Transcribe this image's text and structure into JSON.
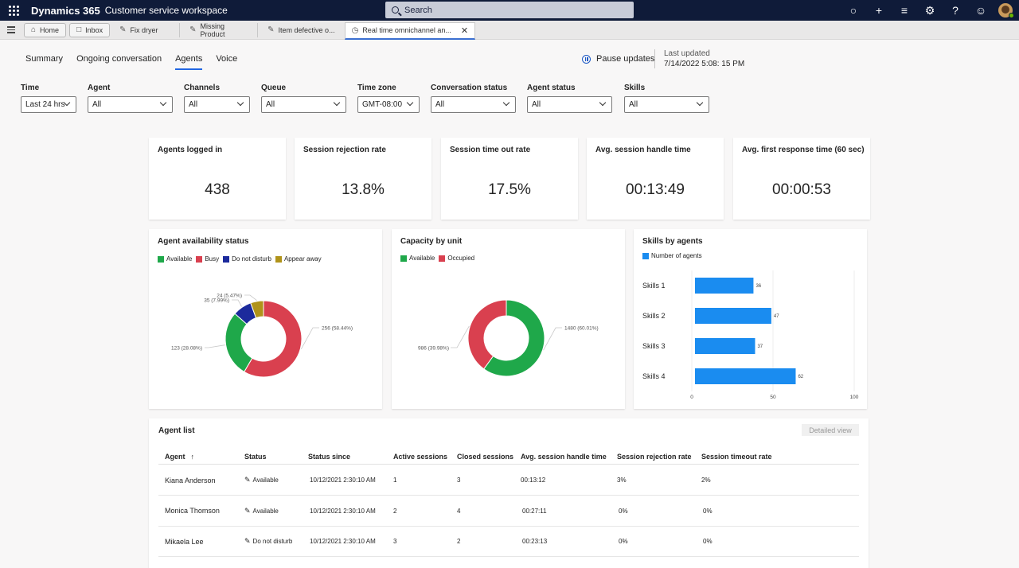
{
  "app": {
    "brand": "Dynamics 365",
    "workspace": "Customer service workspace",
    "search_placeholder": "Search",
    "top_icons": [
      "lightbulb-icon",
      "plus-icon",
      "filter-icon",
      "gear-icon",
      "help-icon",
      "smiley-icon"
    ]
  },
  "session_tabs": [
    {
      "label": "Home",
      "icon": "home-icon"
    },
    {
      "label": "Inbox",
      "icon": "inbox-icon"
    },
    {
      "label": "Fix dryer",
      "icon": "pencil-icon"
    },
    {
      "label": "Missing Product",
      "icon": "pencil-icon"
    },
    {
      "label": "Item defective o...",
      "icon": "pencil-icon"
    },
    {
      "label": "Real time omnichannel an...",
      "icon": "dashboard-icon"
    }
  ],
  "page_tabs": [
    "Summary",
    "Ongoing conversation",
    "Agents",
    "Voice"
  ],
  "active_page_tab": "Agents",
  "pause_label": "Pause updates",
  "last_updated": {
    "label": "Last updated",
    "value": "7/14/2022 5:08: 15 PM"
  },
  "filters": [
    {
      "label": "Time",
      "value": "Last 24 hrs"
    },
    {
      "label": "Agent",
      "value": "All"
    },
    {
      "label": "Channels",
      "value": "All"
    },
    {
      "label": "Queue",
      "value": "All"
    },
    {
      "label": "Time zone",
      "value": "GMT-08:00"
    },
    {
      "label": "Conversation status",
      "value": "All"
    },
    {
      "label": "Agent status",
      "value": "All"
    },
    {
      "label": "Skills",
      "value": "All"
    }
  ],
  "kpis": [
    {
      "title": "Agents logged in",
      "value": "438"
    },
    {
      "title": "Session rejection rate",
      "value": "13.8%"
    },
    {
      "title": "Session time out rate",
      "value": "17.5%"
    },
    {
      "title": "Avg. session handle time",
      "value": "00:13:49"
    },
    {
      "title": "Avg. first response time (60 sec)",
      "value": "00:00:53"
    }
  ],
  "chart_data": [
    {
      "type": "pie",
      "title": "Agent availability status",
      "legend": [
        "Available",
        "Busy",
        "Do not disturb",
        "Appear away"
      ],
      "labels": [
        "Available",
        "Busy",
        "Do not disturb",
        "Appear away"
      ],
      "values": [
        123,
        256,
        35,
        24
      ],
      "data_labels": [
        "123 (28.08%)",
        "256 (58.44%)",
        "35 (7.99%)",
        "24 (5.47%)"
      ],
      "colors": [
        "#1fa84a",
        "#d9404f",
        "#1c2a9c",
        "#b0931a"
      ]
    },
    {
      "type": "pie",
      "title": "Capacity by unit",
      "legend": [
        "Available",
        "Occupied"
      ],
      "labels": [
        "Available",
        "Occupied"
      ],
      "values": [
        1480,
        986
      ],
      "data_labels": [
        "1480 (60.01%)",
        "986 (39.98%)"
      ],
      "colors": [
        "#1fa84a",
        "#d9404f"
      ]
    },
    {
      "type": "bar",
      "orientation": "horizontal",
      "title": "Skills by agents",
      "legend": [
        "Number of agents"
      ],
      "categories": [
        "Skills 1",
        "Skills 2",
        "Skills 3",
        "Skills 4"
      ],
      "values": [
        36,
        47,
        37,
        62
      ],
      "xlim": [
        0,
        100
      ],
      "xticks": [
        "0",
        "50",
        "100"
      ],
      "color": "#1a8cf0",
      "grid": true
    }
  ],
  "agent_list": {
    "title": "Agent list",
    "detailed_view": "Detailed view",
    "sort_icon": "arrow-up-icon",
    "columns": [
      "Agent",
      "Status",
      "Status since",
      "Active sessions",
      "Closed sessions",
      "Avg. session handle time",
      "Session rejection rate",
      "Session timeout rate"
    ],
    "rows": [
      [
        "Kiana Anderson",
        "Available",
        "10/12/2021 2:30:10 AM",
        "1",
        "3",
        "00:13:12",
        "3%",
        "2%"
      ],
      [
        "Monica Thomson",
        "Available",
        "10/12/2021 2:30:10 AM",
        "2",
        "4",
        "00:27:11",
        "0%",
        "0%"
      ],
      [
        "Mikaela Lee",
        "Do not disturb",
        "10/12/2021 2:30:10 AM",
        "3",
        "2",
        "00:23:13",
        "0%",
        "0%"
      ]
    ]
  }
}
